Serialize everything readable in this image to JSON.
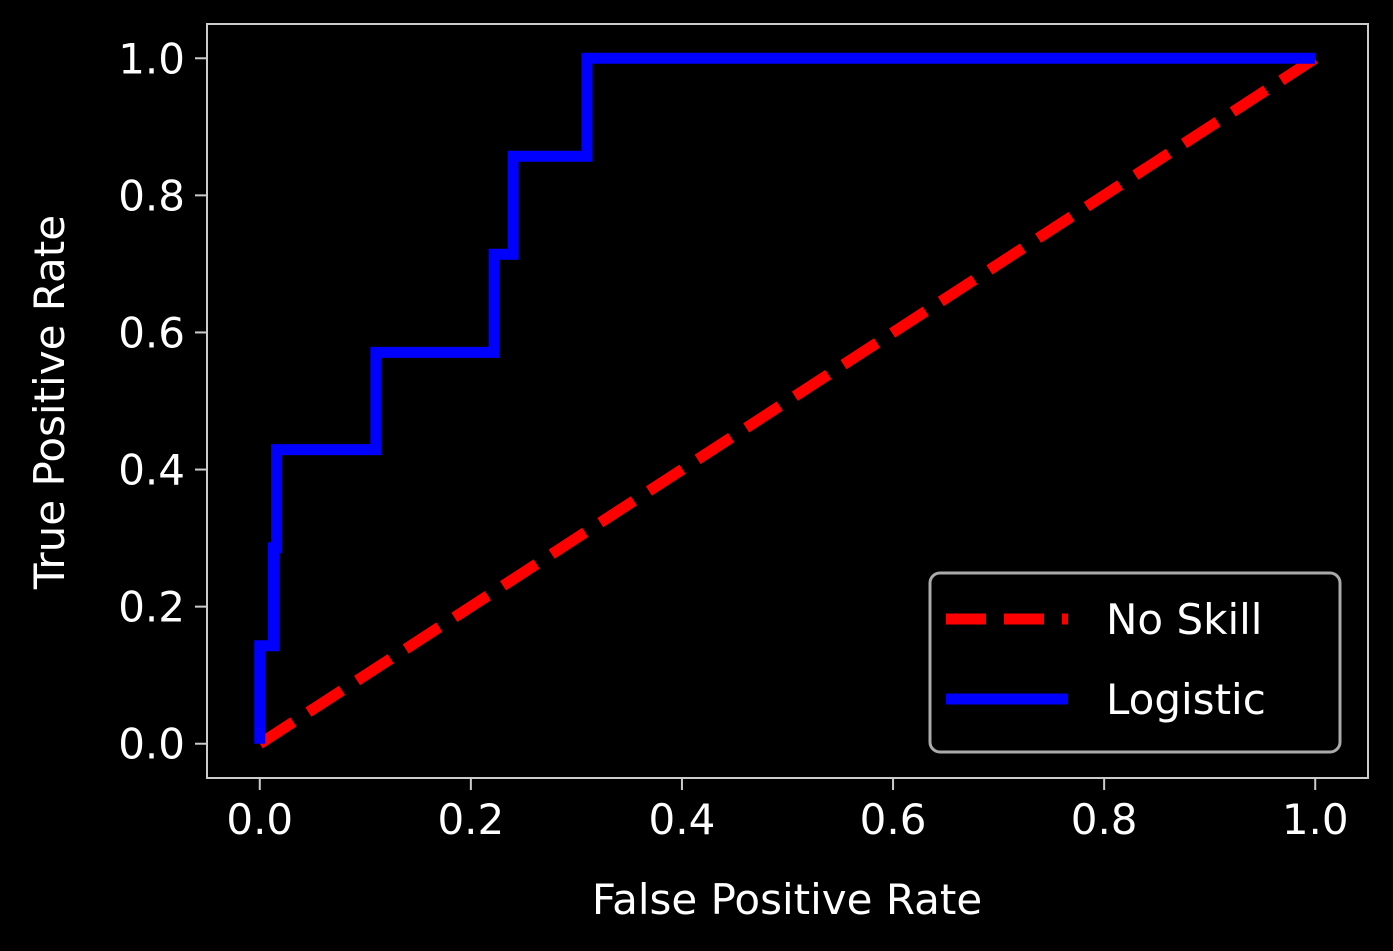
{
  "chart_data": {
    "type": "line",
    "title": "",
    "xlabel": "False Positive Rate",
    "ylabel": "True Positive Rate",
    "xlim": [
      -0.05,
      1.05
    ],
    "ylim": [
      -0.05,
      1.05
    ],
    "xticks": [
      0.0,
      0.2,
      0.4,
      0.6,
      0.8,
      1.0
    ],
    "yticks": [
      0.0,
      0.2,
      0.4,
      0.6,
      0.8,
      1.0
    ],
    "xtick_labels": [
      "0.0",
      "0.2",
      "0.4",
      "0.6",
      "0.8",
      "1.0"
    ],
    "ytick_labels": [
      "0.0",
      "0.2",
      "0.4",
      "0.6",
      "0.8",
      "1.0"
    ],
    "grid": false,
    "legend_position": "lower-right",
    "series": [
      {
        "name": "No Skill",
        "style": "dashed",
        "color": "#ff0000",
        "x": [
          0.0,
          1.0
        ],
        "y": [
          0.0,
          1.0
        ]
      },
      {
        "name": "Logistic",
        "style": "solid",
        "color": "#0000ff",
        "x": [
          0.0,
          0.0,
          0.013,
          0.013,
          0.016,
          0.016,
          0.11,
          0.11,
          0.222,
          0.222,
          0.24,
          0.24,
          0.31,
          0.31,
          1.0
        ],
        "y": [
          0.0,
          0.143,
          0.143,
          0.286,
          0.286,
          0.429,
          0.429,
          0.571,
          0.571,
          0.714,
          0.714,
          0.857,
          0.857,
          1.0,
          1.0
        ]
      }
    ]
  },
  "colors": {
    "background": "#000000",
    "axes_frame": "#cccccc",
    "text": "#ffffff",
    "legend_border": "#aaaaaa"
  }
}
